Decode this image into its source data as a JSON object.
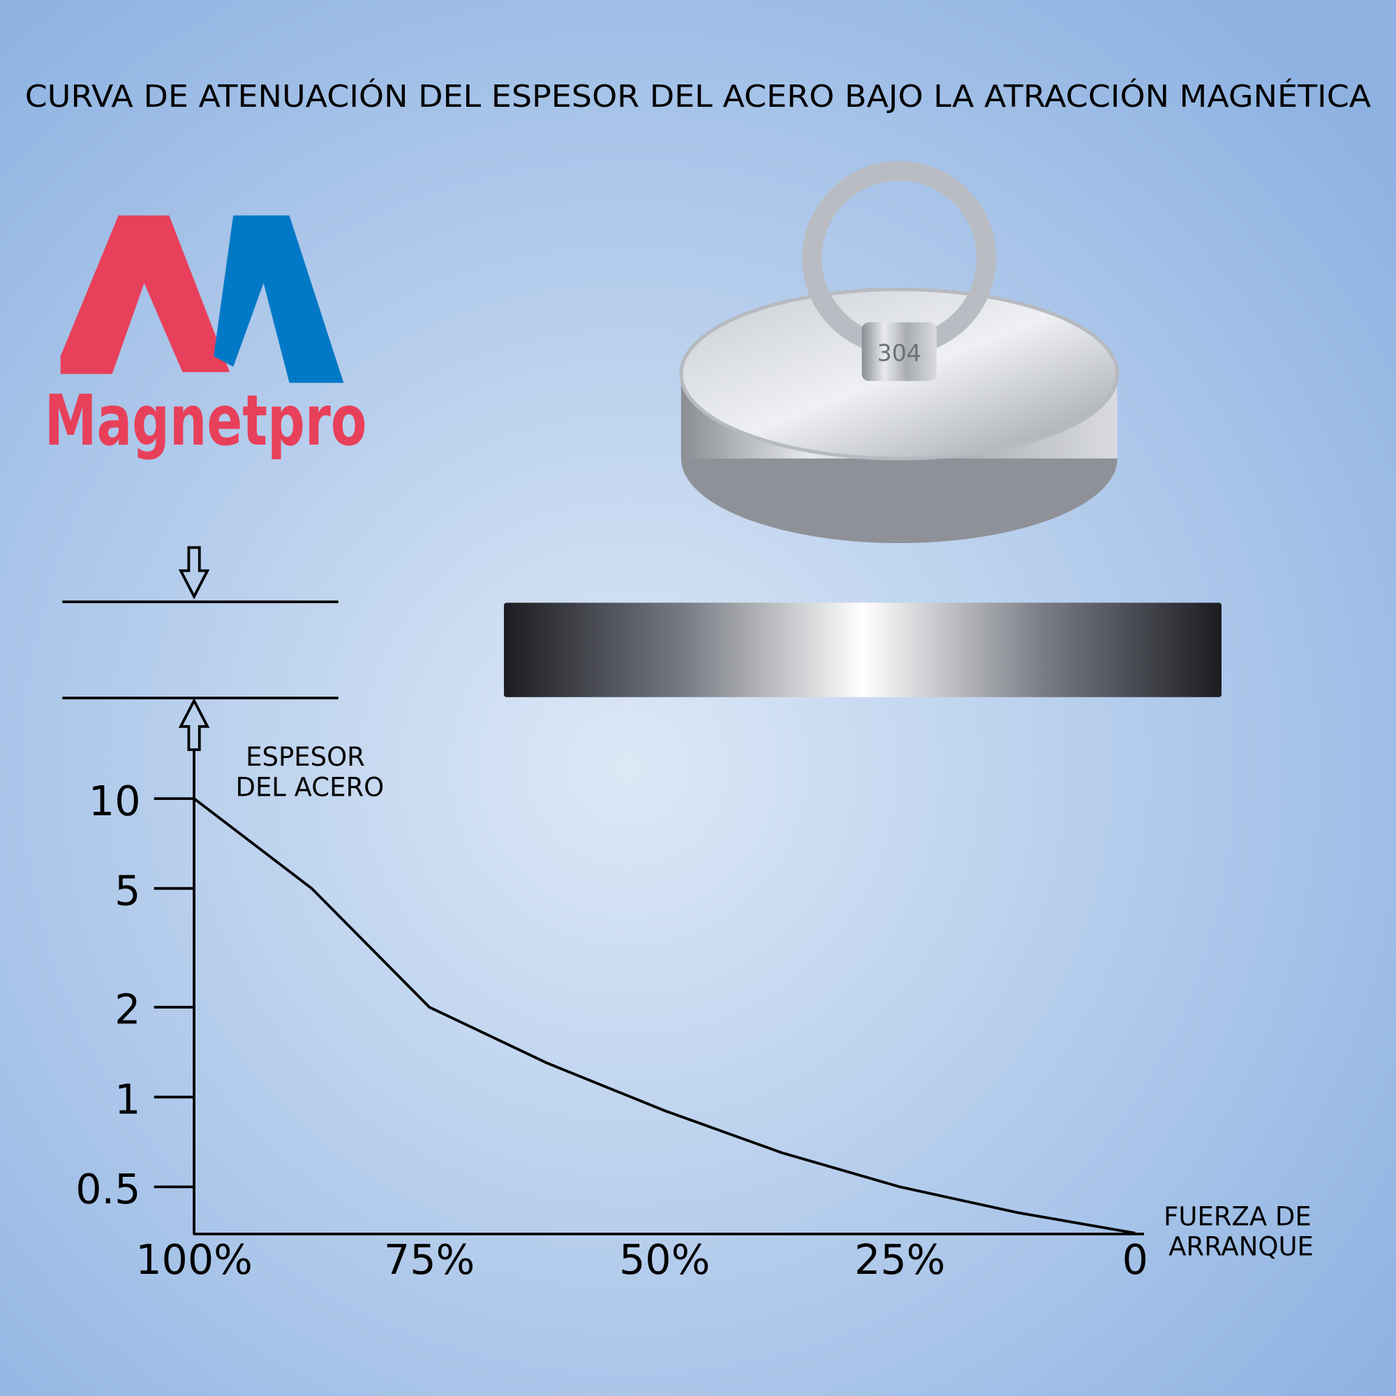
{
  "chart_data": {
    "type": "line",
    "title": "CURVA DE ATENUACIÓN DEL ESPESOR DEL ACERO BAJO LA ATRACCIÓN MAGNÉTICA",
    "y_label": [
      "ESPESOR",
      "DEL ACERO"
    ],
    "x_label": [
      "FUERZA DE",
      "ARRANQUE"
    ],
    "x": [
      100,
      87.5,
      75,
      62.5,
      50,
      37.5,
      25,
      12.5,
      0
    ],
    "values": [
      10,
      5,
      2,
      1.3,
      0.9,
      0.65,
      0.5,
      0.41,
      0.35
    ],
    "color": "#000000",
    "xlim": [
      100,
      0
    ],
    "xticks": [
      {
        "value": 100,
        "label": "100%"
      },
      {
        "value": 75,
        "label": "75%"
      },
      {
        "value": 50,
        "label": "50%"
      },
      {
        "value": 25,
        "label": "25%"
      },
      0
    ],
    "ylim": [
      0.35,
      10
    ],
    "yticks": [
      10,
      5,
      2,
      1,
      0.5
    ],
    "yscale": "log"
  },
  "brand": {
    "name": "Magnetpro"
  },
  "product": {
    "marking": "304"
  }
}
